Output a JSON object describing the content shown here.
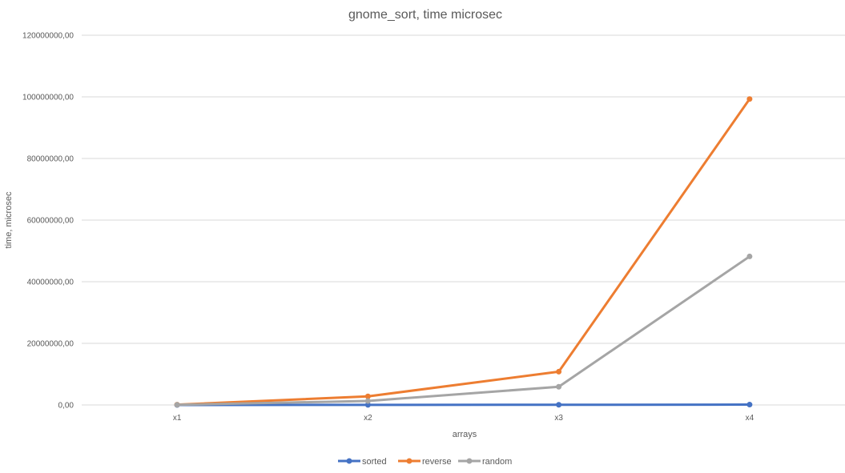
{
  "chart_data": {
    "type": "line",
    "title": "gnome_sort, time microsec",
    "xlabel": "arrays",
    "ylabel": "time, microsec",
    "categories": [
      "x1",
      "x2",
      "x3",
      "x4"
    ],
    "ylim": [
      0,
      120000000
    ],
    "yticks": [
      0,
      20000000,
      40000000,
      60000000,
      80000000,
      100000000,
      120000000
    ],
    "ytick_labels": [
      "0,00",
      "20000000,00",
      "40000000,00",
      "60000000,00",
      "80000000,00",
      "100000000,00",
      "120000000,00"
    ],
    "grid": true,
    "legend_position": "bottom",
    "series": [
      {
        "name": "sorted",
        "color": "#4472c4",
        "values": [
          0,
          30000,
          60000,
          120000
        ]
      },
      {
        "name": "reverse",
        "color": "#ed7d31",
        "values": [
          100000,
          2800000,
          10800000,
          99300000
        ]
      },
      {
        "name": "random",
        "color": "#a5a5a5",
        "values": [
          50000,
          1300000,
          5900000,
          48200000
        ]
      }
    ]
  }
}
